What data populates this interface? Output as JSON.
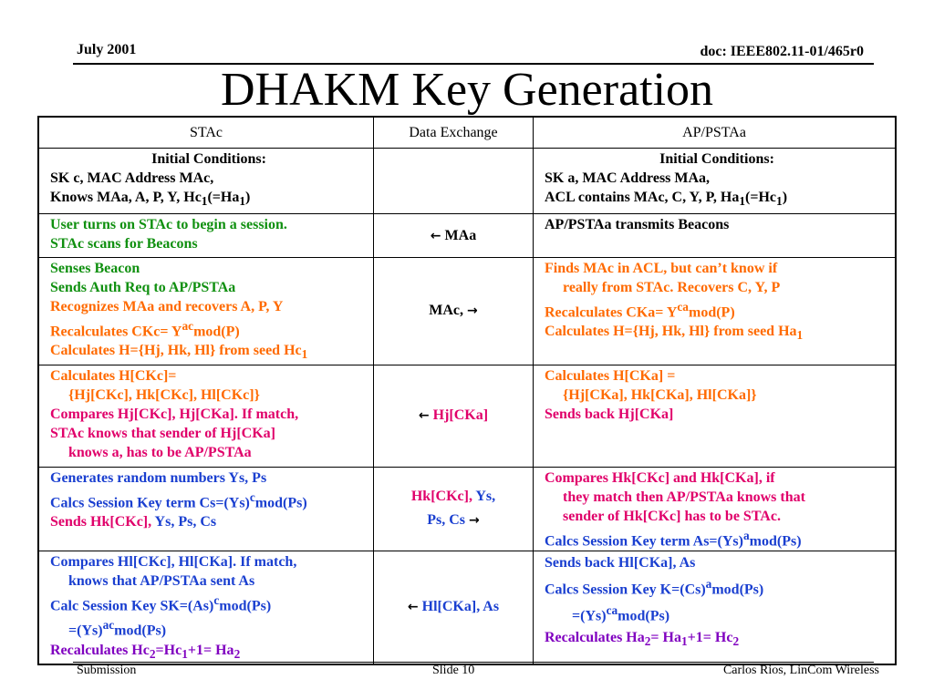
{
  "header": {
    "date": "July 2001",
    "doc_id": "doc: IEEE802.11-01/465r0",
    "title": "DHAKM Key Generation"
  },
  "table": {
    "columns": [
      "STAc",
      "Data Exchange",
      "AP/PSTAa"
    ],
    "rows": [
      {
        "sta": [
          "Initial Conditions:",
          "SK c, MAC Address MAc,",
          "Knows  MAa, A, P, Y, Hc",
          "1",
          "(=Ha",
          "1",
          ")"
        ],
        "exchange": "",
        "ap": [
          "Initial Conditions:",
          "SK a, MAC Address MAa,",
          "ACL contains MAc, C, Y, P, Ha",
          "1",
          "(=Hc",
          "1",
          ")"
        ]
      },
      {
        "sta": [
          "User turns on STAc to begin a session.",
          "STAc scans for Beacons"
        ],
        "exchange": "MAa",
        "ap": [
          "AP/PSTAa transmits Beacons"
        ]
      },
      {
        "sta": [
          "Senses Beacon",
          "Sends Auth Req to AP/PSTAa",
          "Recognizes MAa and recovers A, P, Y",
          "Recalculates CKc= Y",
          "ac",
          "mod(P)",
          "Calculates H={Hj, Hk, Hl} from seed Hc",
          "1"
        ],
        "exchange": "MAc,",
        "ap": [
          "Finds MAc in ACL, but can’t know if",
          "really from STAc. Recovers C, Y, P",
          "Recalculates CKa= Y",
          "ca",
          "mod(P)",
          "Calculates H={Hj, Hk, Hl} from seed Ha",
          "1"
        ]
      },
      {
        "sta": [
          "Calculates H[CKc]=",
          "{Hj[CKc], Hk[CKc], Hl[CKc]}",
          "Compares Hj[CKc], Hj[CKa]. If match,",
          "STAc knows that sender of Hj[CKa]",
          "knows a, has to be AP/PSTAa"
        ],
        "exchange": "Hj[CKa]",
        "ap": [
          "Calculates H[CKa] =",
          "{Hj[CKa], Hk[CKa], Hl[CKa]}",
          "Sends back Hj[CKa]"
        ]
      },
      {
        "sta": [
          "Generates random numbers Ys, Ps",
          "Calcs Session Key term Cs=(Ys)",
          "c",
          "mod(Ps)",
          "Sends Hk[CKc],",
          " Ys, Ps, Cs"
        ],
        "exchange": [
          "Hk[CKc],",
          " Ys,",
          "Ps, Cs"
        ],
        "ap": [
          "Compares Hk[CKc] and Hk[CKa], if",
          "they match then AP/PSTAa knows that",
          "sender of Hk[CKc] has to be STAc.",
          "Calcs Session Key term As=(Ys)",
          "a",
          "mod(Ps)"
        ]
      },
      {
        "sta": [
          "Compares Hl[CKc], Hl[CKa]. If match,",
          "knows that AP/PSTAa sent As",
          "Calc Session Key SK=(As)",
          "c",
          "mod(Ps)",
          "=(Ys)",
          "ac",
          "mod(Ps)",
          "Recalculates Hc",
          "2",
          "=Hc",
          "1",
          "+1= Ha",
          "2"
        ],
        "exchange": "Hl[CKa], As",
        "ap": [
          "Sends back Hl[CKa], As",
          "Calcs Session Key K=(Cs)",
          "a",
          "mod(Ps)",
          "=(Ys)",
          "ca",
          "mod(Ps)",
          "Recalculates Ha",
          "2",
          "= Ha",
          "1",
          "+1= Hc",
          "2"
        ]
      }
    ]
  },
  "icons": {
    "arrow_left": "left-arrow-icon",
    "arrow_right": "right-arrow-icon"
  },
  "colors": {
    "green": "#109010",
    "orange": "#ff6a00",
    "magenta": "#e0006a",
    "blue": "#1a3fd0",
    "purple": "#8000c0"
  },
  "footer": {
    "left": "Submission",
    "center": "Slide 10",
    "right": "Carlos Rios, LinCom Wireless"
  }
}
